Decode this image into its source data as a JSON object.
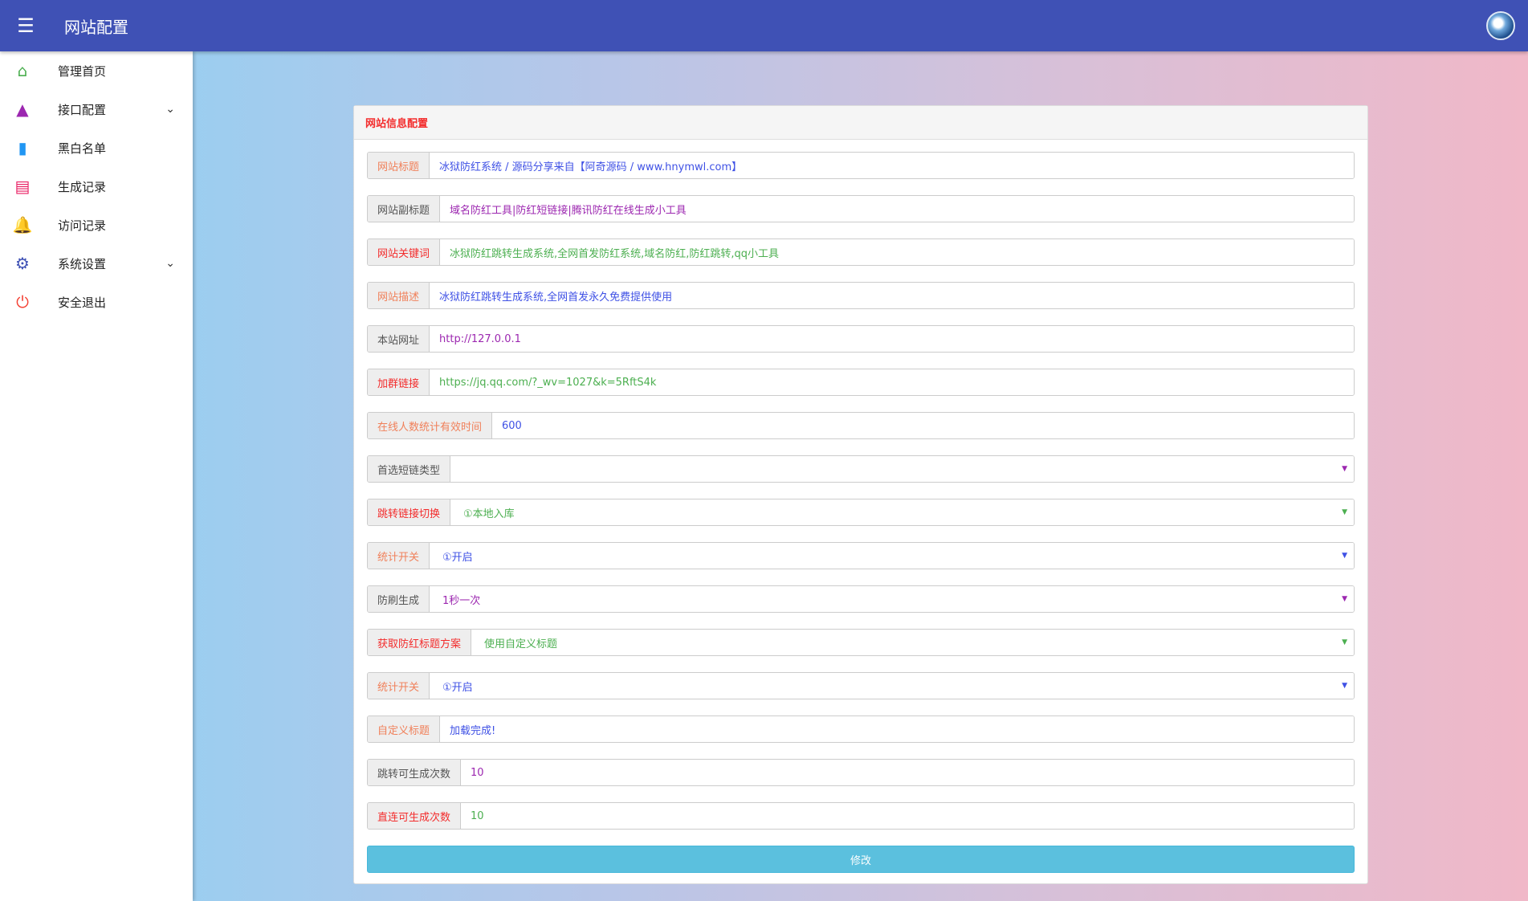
{
  "header": {
    "title": "网站配置",
    "menu_icon": "menu-icon",
    "avatar_icon": "avatar"
  },
  "sidebar": {
    "items": [
      {
        "label": "管理首页",
        "icon": "home-icon",
        "color": "#4caf50",
        "glyph": "⌂"
      },
      {
        "label": "接口配置",
        "icon": "navigation-icon",
        "color": "#9c27b0",
        "glyph": "▲",
        "chevron": true
      },
      {
        "label": "黑白名单",
        "icon": "book-icon",
        "color": "#2196f3",
        "glyph": "▮"
      },
      {
        "label": "生成记录",
        "icon": "web-icon",
        "color": "#e91e63",
        "glyph": "▤"
      },
      {
        "label": "访问记录",
        "icon": "bell-icon",
        "color": "#ff9800",
        "glyph": "🔔"
      },
      {
        "label": "系统设置",
        "icon": "gear-icon",
        "color": "#3f51b5",
        "glyph": "⚙",
        "chevron": true
      },
      {
        "label": "安全退出",
        "icon": "power-icon",
        "color": "#f44336",
        "glyph": "⏻"
      }
    ]
  },
  "card": {
    "title": "网站信息配置",
    "submit_label": "修改",
    "fields": [
      {
        "label": "网站标题",
        "value": "冰狱防红系统 / 源码分享来自【阿奇源码 / www.hnymwl.com】",
        "label_color": "c-or",
        "value_color": "v-bl",
        "type": "input"
      },
      {
        "label": "网站副标题",
        "value": "域名防红工具|防红短链接|腾讯防红在线生成小工具",
        "label_color": "c-gr",
        "value_color": "v-pu",
        "type": "input"
      },
      {
        "label": "网站关键词",
        "value": "冰狱防红跳转生成系统,全网首发防红系统,域名防红,防红跳转,qq小工具",
        "label_color": "c-rd",
        "value_color": "v-gn",
        "type": "input"
      },
      {
        "label": "网站描述",
        "value": "冰狱防红跳转生成系统,全网首发永久免费提供使用",
        "label_color": "c-or",
        "value_color": "v-bl",
        "type": "input"
      },
      {
        "label": "本站网址",
        "value": "http://127.0.0.1",
        "label_color": "c-gr",
        "value_color": "v-pu",
        "type": "input"
      },
      {
        "label": "加群链接",
        "value": "https://jq.qq.com/?_wv=1027&k=5RftS4k",
        "label_color": "c-rd",
        "value_color": "v-gn",
        "type": "input"
      },
      {
        "label": "在线人数统计有效时间",
        "value": "600",
        "label_color": "c-or",
        "value_color": "v-bl",
        "type": "input"
      },
      {
        "label": "首选短链类型",
        "value": "",
        "label_color": "c-gr",
        "value_color": "v-pu",
        "type": "select"
      },
      {
        "label": "跳转链接切换",
        "value": "①本地入库",
        "label_color": "c-rd",
        "value_color": "v-gn",
        "type": "select"
      },
      {
        "label": "统计开关",
        "value": "①开启",
        "label_color": "c-or",
        "value_color": "v-bl",
        "type": "select"
      },
      {
        "label": "防刷生成",
        "value": "1秒一次",
        "label_color": "c-gr",
        "value_color": "v-pu",
        "type": "select"
      },
      {
        "label": "获取防红标题方案",
        "value": "使用自定义标题",
        "label_color": "c-rd",
        "value_color": "v-gn",
        "type": "select"
      },
      {
        "label": "统计开关",
        "value": "①开启",
        "label_color": "c-or",
        "value_color": "v-bl",
        "type": "select"
      },
      {
        "label": "自定义标题",
        "value": "加载完成!",
        "label_color": "c-or",
        "value_color": "v-bl",
        "type": "input"
      },
      {
        "label": "跳转可生成次数",
        "value": "10",
        "label_color": "c-gr",
        "value_color": "v-pu",
        "type": "input"
      },
      {
        "label": "直连可生成次数",
        "value": "10",
        "label_color": "c-rd",
        "value_color": "v-gn",
        "type": "input"
      }
    ]
  }
}
